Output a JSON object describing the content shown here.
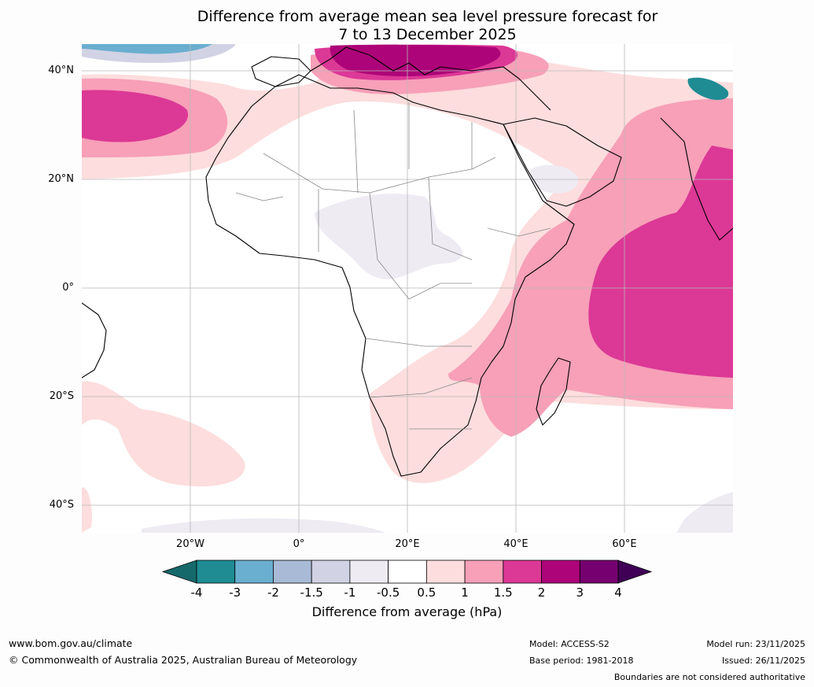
{
  "title": {
    "line1": "Difference from average mean sea level pressure forecast for",
    "line2": "7 to 13 December 2025"
  },
  "axes": {
    "lat_labels": [
      "40°N",
      "20°N",
      "0°",
      "20°S",
      "40°S"
    ],
    "lon_labels": [
      "20°W",
      "0°",
      "20°E",
      "40°E",
      "60°E"
    ]
  },
  "colorbar": {
    "ticks": [
      "-4",
      "-3",
      "-2",
      "-1.5",
      "-1",
      "-0.5",
      "0.5",
      "1",
      "1.5",
      "2",
      "3",
      "4"
    ],
    "colors": [
      "#16696b",
      "#1f8c94",
      "#6aaed0",
      "#a8bad6",
      "#d1d3e4",
      "#eeebf3",
      "#ffffff",
      "#fddddd",
      "#f7a0b8",
      "#dc3896",
      "#ad0579",
      "#76006f",
      "#3f0055"
    ],
    "label": "Difference from average (hPa)"
  },
  "footer": {
    "url": "www.bom.gov.au/climate",
    "copyright": "© Commonwealth of Australia 2025, Australian Bureau of Meteorology",
    "model": "Model: ACCESS-S2",
    "base_period": "Base period: 1981-2018",
    "model_run": "Model run: 23/11/2025",
    "issued": "Issued: 26/11/2025",
    "disclaimer": "Boundaries are not considered authoritative"
  }
}
